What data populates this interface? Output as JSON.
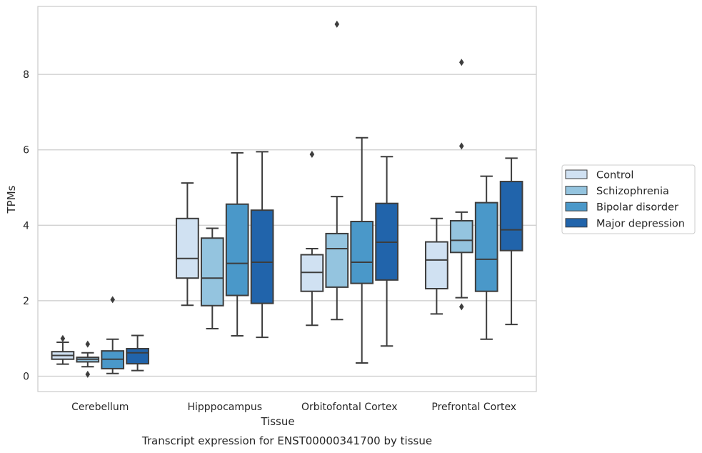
{
  "chart_data": {
    "type": "box",
    "title": "",
    "caption": "Transcript expression for ENST00000341700 by tissue",
    "xlabel": "Tissue",
    "ylabel": "TPMs",
    "ylim": [
      -0.4,
      9.8
    ],
    "yticks": [
      0,
      2,
      4,
      6,
      8
    ],
    "grid": "horizontal",
    "legend_position": "right",
    "categories": [
      "Cerebellum",
      "Hipppocampus",
      "Orbitofontal Cortex",
      "Prefrontal Cortex"
    ],
    "series": [
      {
        "name": "Control",
        "color": "#d0e1f2",
        "boxes": [
          {
            "whislo": 0.32,
            "q1": 0.45,
            "median": 0.55,
            "q3": 0.65,
            "whishi": 0.9,
            "fliers": [
              1.0
            ]
          },
          {
            "whislo": 1.88,
            "q1": 2.6,
            "median": 3.12,
            "q3": 4.18,
            "whishi": 5.12,
            "fliers": []
          },
          {
            "whislo": 1.35,
            "q1": 2.25,
            "median": 2.75,
            "q3": 3.22,
            "whishi": 3.38,
            "fliers": [
              5.88
            ]
          },
          {
            "whislo": 1.65,
            "q1": 2.32,
            "median": 3.08,
            "q3": 3.56,
            "whishi": 4.18,
            "fliers": []
          }
        ]
      },
      {
        "name": "Schizophrenia",
        "color": "#94c4df",
        "boxes": [
          {
            "whislo": 0.25,
            "q1": 0.38,
            "median": 0.45,
            "q3": 0.5,
            "whishi": 0.62,
            "fliers": [
              0.85,
              0.05
            ]
          },
          {
            "whislo": 1.26,
            "q1": 1.87,
            "median": 2.6,
            "q3": 3.66,
            "whishi": 3.92,
            "fliers": []
          },
          {
            "whislo": 1.5,
            "q1": 2.36,
            "median": 3.38,
            "q3": 3.78,
            "whishi": 4.76,
            "fliers": [
              9.33
            ]
          },
          {
            "whislo": 2.08,
            "q1": 3.28,
            "median": 3.6,
            "q3": 4.12,
            "whishi": 4.35,
            "fliers": [
              8.32,
              6.1,
              1.84
            ]
          }
        ]
      },
      {
        "name": "Bipolar disorder",
        "color": "#4a98c9",
        "boxes": [
          {
            "whislo": 0.07,
            "q1": 0.2,
            "median": 0.45,
            "q3": 0.67,
            "whishi": 0.98,
            "fliers": [
              2.03
            ]
          },
          {
            "whislo": 1.07,
            "q1": 2.14,
            "median": 2.99,
            "q3": 4.56,
            "whishi": 5.92,
            "fliers": []
          },
          {
            "whislo": 0.35,
            "q1": 2.46,
            "median": 3.02,
            "q3": 4.1,
            "whishi": 6.32,
            "fliers": []
          },
          {
            "whislo": 0.98,
            "q1": 2.25,
            "median": 3.1,
            "q3": 4.6,
            "whishi": 5.3,
            "fliers": []
          }
        ]
      },
      {
        "name": "Major depression",
        "color": "#2164ab",
        "boxes": [
          {
            "whislo": 0.15,
            "q1": 0.33,
            "median": 0.62,
            "q3": 0.73,
            "whishi": 1.08,
            "fliers": []
          },
          {
            "whislo": 1.03,
            "q1": 1.93,
            "median": 3.02,
            "q3": 4.4,
            "whishi": 5.95,
            "fliers": []
          },
          {
            "whislo": 0.8,
            "q1": 2.55,
            "median": 3.55,
            "q3": 4.58,
            "whishi": 5.82,
            "fliers": []
          },
          {
            "whislo": 1.37,
            "q1": 3.33,
            "median": 3.88,
            "q3": 5.16,
            "whishi": 5.78,
            "fliers": []
          }
        ]
      }
    ]
  }
}
